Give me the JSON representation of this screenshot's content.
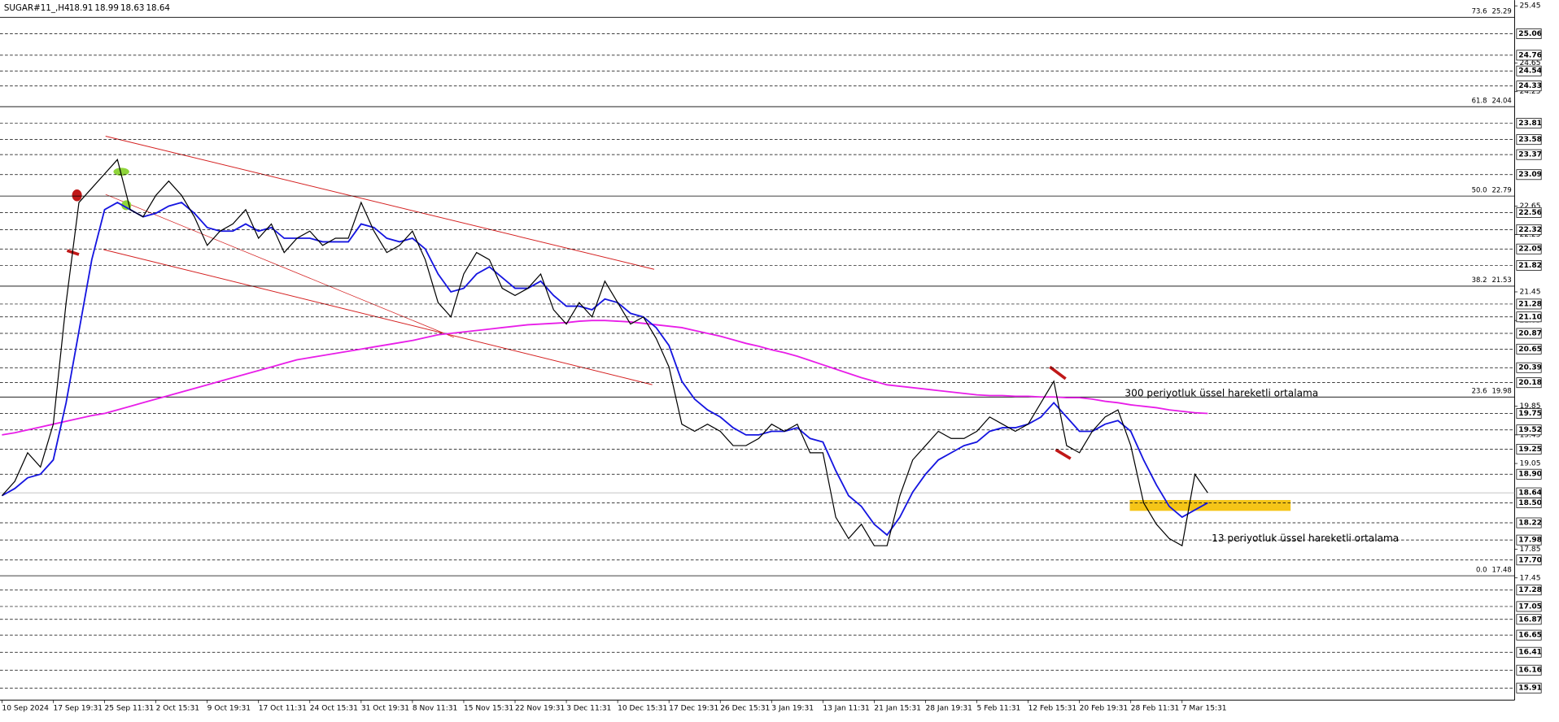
{
  "chart_data": {
    "type": "line",
    "header_ohlc": [
      18.91,
      18.99,
      18.63,
      18.64
    ],
    "categories": [
      "10 Sep 2024",
      null,
      null,
      null,
      "17 Sep 19:31",
      null,
      null,
      null,
      "25 Sep 11:31",
      null,
      null,
      null,
      "2 Oct 15:31",
      null,
      null,
      null,
      "9 Oct 19:31",
      null,
      null,
      null,
      "17 Oct 11:31",
      null,
      null,
      null,
      "24 Oct 15:31",
      null,
      null,
      null,
      "31 Oct 19:31",
      null,
      null,
      null,
      "8 Nov 11:31",
      null,
      null,
      null,
      "15 Nov 15:31",
      null,
      null,
      null,
      "22 Nov 19:31",
      null,
      null,
      null,
      "3 Dec 11:31",
      null,
      null,
      null,
      "10 Dec 15:31",
      null,
      null,
      null,
      "17 Dec 19:31",
      null,
      null,
      null,
      "26 Dec 15:31",
      null,
      null,
      null,
      "3 Jan 19:31",
      null,
      null,
      null,
      "13 Jan 11:31",
      null,
      null,
      null,
      "21 Jan 15:31",
      null,
      null,
      null,
      "28 Jan 19:31",
      null,
      null,
      null,
      "5 Feb 11:31",
      null,
      null,
      null,
      "12 Feb 15:31",
      null,
      null,
      null,
      "20 Feb 19:31",
      null,
      null,
      null,
      "28 Feb 11:31",
      null,
      null,
      null,
      "7 Mar 15:31",
      null,
      null
    ],
    "series": [
      {
        "name": "SUGAR#11_,H4",
        "color": "#000000",
        "values": [
          18.6,
          18.8,
          19.2,
          19.0,
          19.6,
          21.3,
          22.7,
          22.9,
          23.1,
          23.3,
          22.6,
          22.5,
          22.8,
          23.0,
          22.8,
          22.5,
          22.1,
          22.3,
          22.4,
          22.6,
          22.2,
          22.4,
          22.0,
          22.2,
          22.3,
          22.1,
          22.2,
          22.2,
          22.7,
          22.3,
          22.0,
          22.1,
          22.3,
          21.9,
          21.3,
          21.1,
          21.7,
          22.0,
          21.9,
          21.5,
          21.4,
          21.5,
          21.7,
          21.2,
          21.0,
          21.3,
          21.1,
          21.6,
          21.3,
          21.0,
          21.1,
          20.8,
          20.4,
          19.6,
          19.5,
          19.6,
          19.5,
          19.3,
          19.3,
          19.4,
          19.6,
          19.5,
          19.6,
          19.2,
          19.2,
          18.3,
          18.0,
          18.2,
          17.9,
          17.9,
          18.6,
          19.1,
          19.3,
          19.5,
          19.4,
          19.4,
          19.5,
          19.7,
          19.6,
          19.5,
          19.6,
          19.9,
          20.2,
          19.3,
          19.2,
          19.5,
          19.7,
          19.8,
          19.3,
          18.5,
          18.2,
          18.0,
          17.9,
          18.9,
          18.64
        ]
      },
      {
        "name": "13 periyotluk üssel hareketli ortalama",
        "color": "#1515e0",
        "values": [
          18.6,
          18.7,
          18.85,
          18.9,
          19.1,
          19.9,
          20.9,
          21.9,
          22.6,
          22.7,
          22.6,
          22.5,
          22.55,
          22.65,
          22.7,
          22.55,
          22.35,
          22.3,
          22.3,
          22.4,
          22.3,
          22.35,
          22.2,
          22.2,
          22.2,
          22.15,
          22.15,
          22.15,
          22.4,
          22.35,
          22.2,
          22.15,
          22.2,
          22.05,
          21.7,
          21.45,
          21.5,
          21.7,
          21.8,
          21.65,
          21.5,
          21.5,
          21.6,
          21.4,
          21.25,
          21.25,
          21.2,
          21.35,
          21.3,
          21.15,
          21.1,
          20.95,
          20.7,
          20.2,
          19.95,
          19.8,
          19.7,
          19.55,
          19.45,
          19.45,
          19.5,
          19.5,
          19.55,
          19.4,
          19.35,
          18.95,
          18.6,
          18.45,
          18.2,
          18.05,
          18.3,
          18.65,
          18.9,
          19.1,
          19.2,
          19.3,
          19.35,
          19.5,
          19.55,
          19.55,
          19.6,
          19.7,
          19.9,
          19.7,
          19.5,
          19.5,
          19.6,
          19.65,
          19.5,
          19.1,
          18.75,
          18.45,
          18.3,
          18.4,
          18.5
        ]
      },
      {
        "name": "300 periyotluk üssel hareketli ortalama",
        "color": "#e81ee8",
        "values": [
          19.45,
          19.48,
          19.52,
          19.56,
          19.6,
          19.64,
          19.68,
          19.72,
          19.75,
          19.8,
          19.85,
          19.9,
          19.95,
          20.0,
          20.05,
          20.1,
          20.15,
          20.2,
          20.25,
          20.3,
          20.35,
          20.4,
          20.45,
          20.5,
          20.53,
          20.56,
          20.59,
          20.62,
          20.65,
          20.68,
          20.71,
          20.74,
          20.77,
          20.81,
          20.85,
          20.87,
          20.89,
          20.91,
          20.93,
          20.95,
          20.97,
          20.99,
          21.0,
          21.01,
          21.02,
          21.04,
          21.05,
          21.05,
          21.04,
          21.03,
          21.01,
          20.99,
          20.97,
          20.95,
          20.91,
          20.87,
          20.83,
          20.78,
          20.73,
          20.69,
          20.64,
          20.6,
          20.55,
          20.49,
          20.43,
          20.37,
          20.31,
          20.25,
          20.2,
          20.15,
          20.13,
          20.11,
          20.09,
          20.07,
          20.05,
          20.03,
          20.01,
          20.0,
          20.0,
          19.99,
          19.99,
          19.98,
          19.98,
          19.97,
          19.97,
          19.95,
          19.92,
          19.9,
          19.87,
          19.85,
          19.83,
          19.8,
          19.78,
          19.76,
          19.75
        ]
      }
    ],
    "ylim": [
      15.74,
      25.53
    ],
    "yticks": [
      25.45,
      24.65,
      24.25,
      22.65,
      22.25,
      21.45,
      21.05,
      19.85,
      19.45,
      19.05,
      17.85,
      17.45
    ],
    "levels": [
      25.06,
      24.76,
      24.54,
      24.33,
      23.81,
      23.58,
      23.37,
      23.09,
      22.56,
      22.32,
      22.05,
      21.82,
      21.28,
      {
        "value": 21.1,
        "label": "21.10"
      },
      20.87,
      20.65,
      20.39,
      20.18,
      19.75,
      19.52,
      19.25,
      {
        "value": 18.9,
        "label": "18.90"
      },
      {
        "value": 18.5,
        "label": "18.50"
      },
      18.22,
      17.98,
      {
        "value": 17.7,
        "label": "17.70"
      },
      17.28,
      17.05,
      16.87,
      16.65,
      16.41,
      16.16,
      15.91
    ],
    "fibonacci": [
      {
        "level": "73.6",
        "value": 25.29
      },
      {
        "level": "61.8",
        "value": 24.04
      },
      {
        "level": "50.0",
        "value": 22.79
      },
      {
        "level": "38.2",
        "value": 21.53
      },
      {
        "level": "23.6",
        "value": 19.98
      },
      {
        "level": "0.0",
        "value": 17.48
      }
    ],
    "last_price": 18.64
  }
}
